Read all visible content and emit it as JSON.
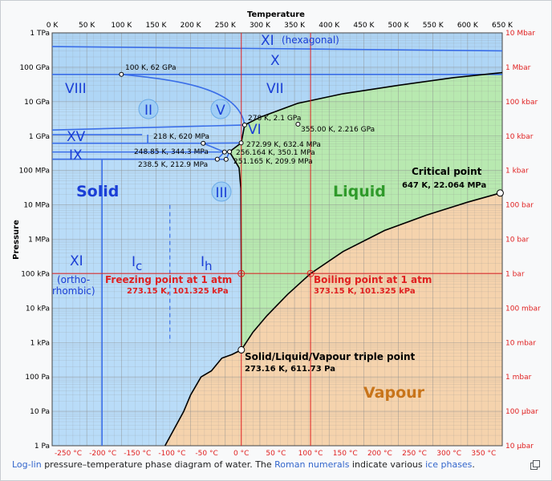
{
  "chart": {
    "xlabel": "Temperature",
    "ylabel": "Pressure",
    "kelvin_ticks": [
      "0 K",
      "50 K",
      "100 K",
      "150 K",
      "200 K",
      "250 K",
      "300 K",
      "350 K",
      "400 K",
      "450 K",
      "500 K",
      "550 K",
      "600 K",
      "650 K"
    ],
    "celsius_ticks": [
      "-250 °C",
      "-200 °C",
      "-150 °C",
      "-100 °C",
      "-50 °C",
      "0 °C",
      "50 °C",
      "100 °C",
      "150 °C",
      "200 °C",
      "250 °C",
      "300 °C",
      "350 °C"
    ],
    "pa_ticks": [
      "1 Pa",
      "10 Pa",
      "100 Pa",
      "1 kPa",
      "10 kPa",
      "100 kPa",
      "1 MPa",
      "10 MPa",
      "100 MPa",
      "1 GPa",
      "10 GPa",
      "100 GPa",
      "1 TPa"
    ],
    "bar_ticks": [
      "10 μbar",
      "100 μbar",
      "1 mbar",
      "10 mbar",
      "100 mbar",
      "1 bar",
      "10 bar",
      "100 bar",
      "1 kbar",
      "10 kbar",
      "100 kbar",
      "1 Mbar",
      "10 Mbar"
    ],
    "colors": {
      "solid": "#b9dcf8",
      "liquid": "#b8e9b0",
      "vapour": "#f5d3ad",
      "boundary": "#000000",
      "ice_line": "#3a6ee8",
      "reference": "#e02020",
      "grid": "#8a8a8a",
      "region_text_solid": "#1a3ed6",
      "region_text_liquid": "#2f9a2a",
      "region_text_vapour": "#c8741a"
    }
  },
  "chart_data": {
    "type": "phase-diagram",
    "x_unit": "K",
    "xlim": [
      0,
      650
    ],
    "ylim_log10_pa": [
      0,
      12
    ],
    "y_scale": "log",
    "regions": [
      "Solid",
      "Liquid",
      "Vapour"
    ],
    "phases": [
      "XI (hexagonal)",
      "X",
      "VII",
      "VIII",
      "XV",
      "IX",
      "II",
      "V",
      "VI",
      "III",
      "XI (ortho-rhombic)",
      "Ic",
      "Ih"
    ],
    "points": [
      {
        "T": 100,
        "P": 62000000000.0,
        "label": "100 K, 62 GPa"
      },
      {
        "T": 278,
        "P": 2100000000.0,
        "label": "278 K, 2.1 GPa"
      },
      {
        "T": 355.0,
        "P": 2216000000.0,
        "label": "355.00 K, 2.216 GPa"
      },
      {
        "T": 218,
        "P": 620000000.0,
        "label": "218 K, 620 MPa"
      },
      {
        "T": 272.99,
        "P": 632400000.0,
        "label": "272.99 K, 632.4 MPa"
      },
      {
        "T": 248.85,
        "P": 344300000.0,
        "label": "248.85 K, 344.3 MPa"
      },
      {
        "T": 256.164,
        "P": 350100000.0,
        "label": "256.164 K, 350.1 MPa"
      },
      {
        "T": 251.165,
        "P": 209900000.0,
        "label": "251.165 K, 209.9 MPa"
      },
      {
        "T": 238.5,
        "P": 212900000.0,
        "label": "238.5 K, 212.9 MPa"
      },
      {
        "T": 273.16,
        "P": 611.73,
        "label": "Solid/Liquid/Vapour triple point",
        "sublabel": "273.16 K, 611.73 Pa"
      },
      {
        "T": 647,
        "P": 22064000.0,
        "label": "Critical point",
        "sublabel": "647 K, 22.064 MPa"
      },
      {
        "T": 273.15,
        "P": 101325,
        "label": "Freezing point at 1 atm",
        "sublabel": "273.15 K, 101.325 kPa"
      },
      {
        "T": 373.15,
        "P": 101325,
        "label": "Boiling point at 1 atm",
        "sublabel": "373.15 K, 101.325 kPa"
      }
    ]
  },
  "labels": {
    "solid": "Solid",
    "liquid": "Liquid",
    "vapour": "Vapour",
    "xi_hex": "XI",
    "xi_hex_sub": "(hexagonal)",
    "x": "X",
    "vii": "VII",
    "viii": "VIII",
    "xv": "XV",
    "ix": "IX",
    "ii": "II",
    "v": "V",
    "vi": "VI",
    "iii": "III",
    "xi_ortho": "XI",
    "ortho_1": "(ortho-",
    "ortho_2": "rhombic)",
    "ic_main": "I",
    "ic_sub": "c",
    "ih_main": "I",
    "ih_sub": "h"
  },
  "caption": {
    "link1": "Log-lin",
    "text1": " pressure–temperature phase diagram of water. The ",
    "link2": "Roman numerals",
    "text2": " indicate various ",
    "link3": "ice phases",
    "text3": "."
  }
}
